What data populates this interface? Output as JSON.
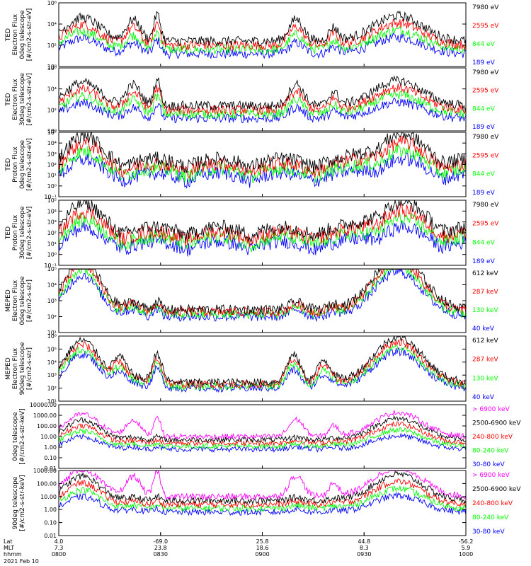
{
  "chart_data": {
    "type": "line",
    "x_axis": {
      "time_ticks": [
        "0800",
        "0830",
        "0900",
        "0930",
        "1000"
      ],
      "lat_ticks": [
        "4.0",
        "-69.0",
        "25.8",
        "44.8",
        "-56.2"
      ],
      "mlt_ticks": [
        "7.3",
        "23.8",
        "18.6",
        "8.3",
        "5.9"
      ],
      "row_labels": [
        "Lat",
        "MLT",
        "hhmm"
      ],
      "date": "2021 Feb 10"
    },
    "panels": [
      {
        "ylabel": [
          "TED",
          "Electron Flux",
          "0deg telescope",
          "[#/cm2-s-str-eV]"
        ],
        "yscale": "log",
        "ylim": [
          1,
          1000000
        ],
        "ytick_labels": [
          "10⁰",
          "10²",
          "10⁴",
          "10⁶"
        ],
        "legend": [
          {
            "label": "7980 eV",
            "color": "#000000"
          },
          {
            "label": "2595 eV",
            "color": "#ff0000"
          },
          {
            "label": "844 eV",
            "color": "#00ff00"
          },
          {
            "label": "189 eV",
            "color": "#0000ff"
          }
        ]
      },
      {
        "ylabel": [
          "TED",
          "Electron Flux",
          "30deg telescope",
          "[#/cm2-s-str-eV]"
        ],
        "yscale": "log",
        "ylim": [
          1,
          1000000
        ],
        "ytick_labels": [
          "10⁰",
          "10²",
          "10⁴",
          "10⁶"
        ],
        "legend": [
          {
            "label": "7980 eV",
            "color": "#000000"
          },
          {
            "label": "2595 eV",
            "color": "#ff0000"
          },
          {
            "label": "844 eV",
            "color": "#00ff00"
          },
          {
            "label": "189 eV",
            "color": "#0000ff"
          }
        ]
      },
      {
        "ylabel": [
          "TED",
          "Proton Flux",
          "0deg telescope",
          "[#/cm2-s-str-eV]"
        ],
        "yscale": "log",
        "ylim": [
          0.1,
          100000
        ],
        "ytick_labels": [
          "10⁻¹",
          "10⁰",
          "10¹",
          "10²",
          "10³",
          "10⁴",
          "10⁵"
        ],
        "legend": [
          {
            "label": "7980 eV",
            "color": "#000000"
          },
          {
            "label": "2595 eV",
            "color": "#ff0000"
          },
          {
            "label": "844 eV",
            "color": "#00ff00"
          },
          {
            "label": "189 eV",
            "color": "#0000ff"
          }
        ]
      },
      {
        "ylabel": [
          "TED",
          "Proton Flux",
          "30deg telescope",
          "[#/cm2-s-str-eV]"
        ],
        "yscale": "log",
        "ylim": [
          0.1,
          100000
        ],
        "ytick_labels": [
          "10⁻¹",
          "10⁰",
          "10¹",
          "10²",
          "10³",
          "10⁴",
          "10⁵"
        ],
        "legend": [
          {
            "label": "7980 eV",
            "color": "#000000"
          },
          {
            "label": "2595 eV",
            "color": "#ff0000"
          },
          {
            "label": "844 eV",
            "color": "#00ff00"
          },
          {
            "label": "189 eV",
            "color": "#0000ff"
          }
        ]
      },
      {
        "ylabel": [
          "MEPED",
          "Electron Flux",
          "0deg telescope",
          "[#/cm2-s-str]"
        ],
        "yscale": "log",
        "ylim": [
          10,
          100000
        ],
        "ytick_labels": [
          "10¹",
          "10²",
          "10³",
          "10⁴",
          "10⁵"
        ],
        "legend": [
          {
            "label": "612 keV",
            "color": "#000000"
          },
          {
            "label": "287 keV",
            "color": "#ff0000"
          },
          {
            "label": "130 keV",
            "color": "#00ff00"
          },
          {
            "label": "40 keV",
            "color": "#0000ff"
          }
        ]
      },
      {
        "ylabel": [
          "MEPED",
          "Electron Flux",
          "90deg telescope",
          "[#/cm2-s-str]"
        ],
        "yscale": "log",
        "ylim": [
          10,
          1000000
        ],
        "ytick_labels": [
          "10¹",
          "10²",
          "10³",
          "10⁴",
          "10⁵",
          "10⁶"
        ],
        "legend": [
          {
            "label": "612 keV",
            "color": "#000000"
          },
          {
            "label": "287 keV",
            "color": "#ff0000"
          },
          {
            "label": "130 keV",
            "color": "#00ff00"
          },
          {
            "label": "40 keV",
            "color": "#0000ff"
          }
        ]
      },
      {
        "ylabel": [
          "0deg telescope",
          "[#/cm2-s-str-keV]"
        ],
        "yscale": "log",
        "ylim": [
          0.01,
          10000
        ],
        "ytick_labels": [
          "0.01",
          "0.10",
          "1.00",
          "10.00",
          "100.00",
          "1000.00",
          "10000.00"
        ],
        "legend": [
          {
            "label": "> 6900 keV",
            "color": "#ff00ff"
          },
          {
            "label": "2500-6900 keV",
            "color": "#000000"
          },
          {
            "label": "240-800 keV",
            "color": "#ff0000"
          },
          {
            "label": "80-240 keV",
            "color": "#00ff00"
          },
          {
            "label": "30-80 keV",
            "color": "#0000ff"
          }
        ]
      },
      {
        "ylabel": [
          "90deg telescope",
          "[#/cm2-s-str-keV]"
        ],
        "yscale": "log",
        "ylim": [
          0.01,
          1000
        ],
        "ytick_labels": [
          "0.01",
          "0.10",
          "1.00",
          "10.00",
          "100.00",
          "1000.00"
        ],
        "legend": [
          {
            "label": "> 6900 keV",
            "color": "#ff00ff"
          },
          {
            "label": "2500-6900 keV",
            "color": "#000000"
          },
          {
            "label": "240-800 keV",
            "color": "#ff0000"
          },
          {
            "label": "80-240 keV",
            "color": "#00ff00"
          },
          {
            "label": "30-80 keV",
            "color": "#0000ff"
          }
        ]
      }
    ]
  }
}
